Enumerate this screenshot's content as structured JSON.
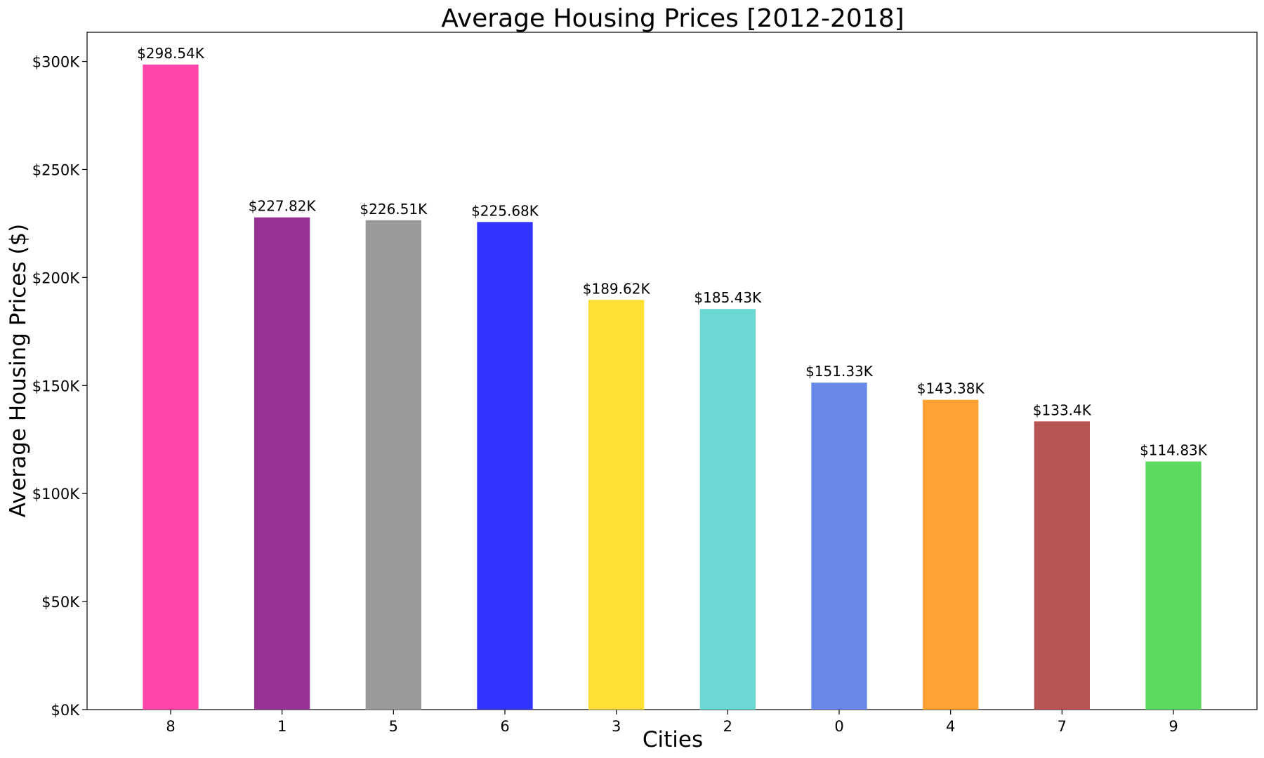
{
  "chart_data": {
    "type": "bar",
    "title": "Average Housing Prices [2012-2018]",
    "xlabel": "Cities",
    "ylabel": "Average Housing Prices ($)",
    "categories": [
      "8",
      "1",
      "5",
      "6",
      "3",
      "2",
      "0",
      "4",
      "7",
      "9"
    ],
    "values": [
      298.54,
      227.82,
      226.51,
      225.68,
      189.62,
      185.43,
      151.33,
      143.38,
      133.4,
      114.83
    ],
    "value_labels": [
      "$298.54K",
      "$227.82K",
      "$226.51K",
      "$225.68K",
      "$189.62K",
      "$185.43K",
      "$151.33K",
      "$143.38K",
      "$133.4K",
      "$114.83K"
    ],
    "colors": [
      "#ff44aa",
      "#963395",
      "#999999",
      "#3333ff",
      "#ffdf33",
      "#6bd8d4",
      "#6889e7",
      "#ffa233",
      "#b75454",
      "#5bda5f"
    ],
    "yticks": [
      0,
      50,
      100,
      150,
      200,
      250,
      300
    ],
    "ytick_labels": [
      "$0K",
      "$50K",
      "$100K",
      "$150K",
      "$200K",
      "$250K",
      "$300K"
    ],
    "ylim": [
      0,
      313.5
    ],
    "grid": false,
    "legend": "none"
  }
}
